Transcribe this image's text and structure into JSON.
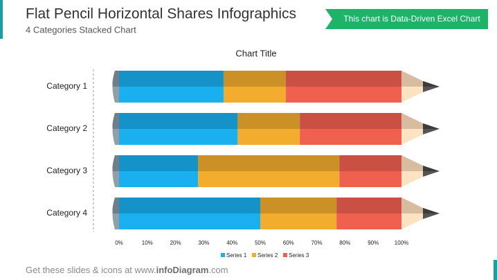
{
  "header": {
    "title": "Flat Pencil Horizontal Shares Infographics",
    "subtitle": "4 Categories Stacked Chart",
    "badge": "This chart is Data-Driven Excel Chart"
  },
  "footer": {
    "parts": [
      "Get these slides & icons at www.",
      "infoDiagram",
      ".com"
    ]
  },
  "chart_data": {
    "type": "stacked-bar-horizontal",
    "title": "Chart Title",
    "categories": [
      "Category 1",
      "Category 2",
      "Category 3",
      "Category 4"
    ],
    "series": [
      {
        "name": "Series 1",
        "color": "#1ab0f0",
        "values": [
          37,
          42,
          28,
          50
        ]
      },
      {
        "name": "Series 2",
        "color": "#f2ac2e",
        "values": [
          22,
          22,
          50,
          27
        ]
      },
      {
        "name": "Series 3",
        "color": "#f0604f",
        "values": [
          41,
          36,
          22,
          23
        ]
      }
    ],
    "xlim": [
      0,
      100
    ],
    "xticks": [
      {
        "value": 0,
        "label": "0%"
      },
      {
        "value": 10,
        "label": "10%"
      },
      {
        "value": 20,
        "label": "20%"
      },
      {
        "value": 30,
        "label": "30%"
      },
      {
        "value": 40,
        "label": "40%"
      },
      {
        "value": 50,
        "label": "50%"
      },
      {
        "value": 60,
        "label": "60%"
      },
      {
        "value": 70,
        "label": "70%"
      },
      {
        "value": 80,
        "label": "80%"
      },
      {
        "value": 90,
        "label": "90%"
      },
      {
        "value": 100,
        "label": "100%"
      }
    ],
    "legend": "bottom"
  }
}
